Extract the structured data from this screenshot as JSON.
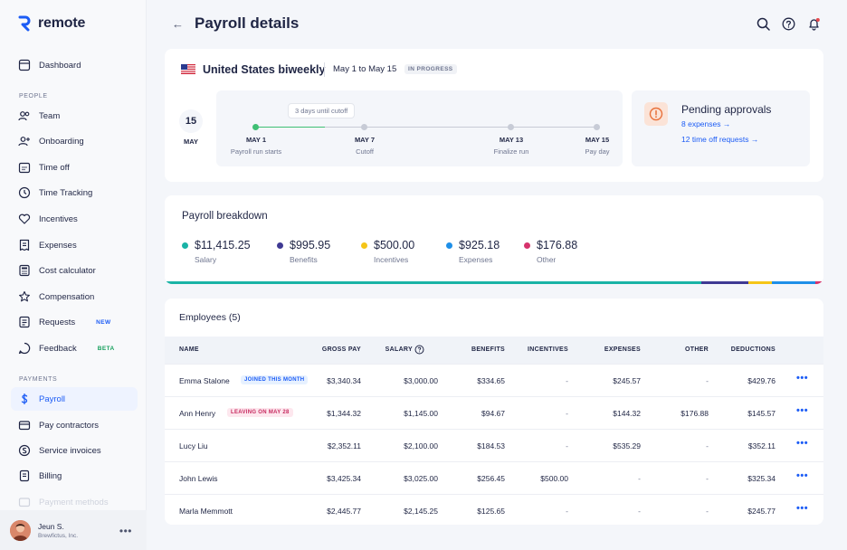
{
  "app": {
    "name": "remote"
  },
  "colors": {
    "brand": "#1c5cf5",
    "green": "#3fbf74"
  },
  "sidebar": {
    "items": [
      {
        "label": "Dashboard",
        "icon": "dashboard-icon"
      },
      {
        "label": "Team",
        "icon": "team-icon"
      },
      {
        "label": "Onboarding",
        "icon": "onboarding-icon"
      },
      {
        "label": "Time off",
        "icon": "calendar-icon"
      },
      {
        "label": "Time Tracking",
        "icon": "clock-icon"
      },
      {
        "label": "Incentives",
        "icon": "heart-icon"
      },
      {
        "label": "Expenses",
        "icon": "receipt-icon"
      },
      {
        "label": "Cost calculator",
        "icon": "calculator-icon"
      },
      {
        "label": "Compensation",
        "icon": "star-icon"
      },
      {
        "label": "Requests",
        "icon": "requests-icon",
        "badge": "NEW"
      },
      {
        "label": "Feedback",
        "icon": "feedback-icon",
        "badge": "BETA"
      },
      {
        "label": "Payroll",
        "icon": "dollar-icon"
      },
      {
        "label": "Pay contractors",
        "icon": "card-icon"
      },
      {
        "label": "Service invoices",
        "icon": "invoice-icon"
      },
      {
        "label": "Billing",
        "icon": "billing-icon"
      },
      {
        "label": "Payment methods",
        "icon": "payment-icon"
      }
    ],
    "sections": {
      "people": "PEOPLE",
      "payments": "PAYMENTS"
    },
    "user": {
      "name": "Jeun S.",
      "org": "Brewfictus, Inc."
    }
  },
  "header": {
    "title": "Payroll details"
  },
  "payroll_run": {
    "country": "United States biweekly",
    "period": "May 1 to May 15",
    "status": "IN PROGRESS",
    "calendar_day": "15",
    "calendar_month": "MAY",
    "tooltip": "3 days until cutoff",
    "steps": [
      {
        "date": "MAY 1",
        "desc": "Payroll run starts"
      },
      {
        "date": "MAY 7",
        "desc": "Cutoff"
      },
      {
        "date": "MAY 13",
        "desc": "Finalize run"
      },
      {
        "date": "MAY 15",
        "desc": "Pay day"
      }
    ]
  },
  "approvals": {
    "title": "Pending approvals",
    "expenses": "8 expenses →",
    "time_off": "12 time off requests →"
  },
  "breakdown": {
    "title": "Payroll breakdown",
    "items": [
      {
        "value": "$11,415.25",
        "label": "Salary",
        "color": "#19b3a6"
      },
      {
        "value": "$995.95",
        "label": "Benefits",
        "color": "#3f3a93"
      },
      {
        "value": "$500.00",
        "label": "Incentives",
        "color": "#f5c518"
      },
      {
        "value": "$925.18",
        "label": "Expenses",
        "color": "#1e8fe8"
      },
      {
        "value": "$176.88",
        "label": "Other",
        "color": "#d6336c"
      }
    ]
  },
  "employees": {
    "title": "Employees (5)",
    "columns": [
      "NAME",
      "GROSS PAY",
      "SALARY",
      "BENEFITS",
      "INCENTIVES",
      "EXPENSES",
      "OTHER",
      "DEDUCTIONS"
    ],
    "rows": [
      {
        "name": "Emma Stalone",
        "tag": "JOINED THIS MONTH",
        "tag_type": "join",
        "gross": "$3,340.34",
        "salary": "$3,000.00",
        "benefits": "$334.65",
        "incentives": "-",
        "expenses": "$245.57",
        "other": "-",
        "deductions": "$429.76"
      },
      {
        "name": "Ann Henry",
        "tag": "LEAVING ON MAY 28",
        "tag_type": "leave",
        "gross": "$1,344.32",
        "salary": "$1,145.00",
        "benefits": "$94.67",
        "incentives": "-",
        "expenses": "$144.32",
        "other": "$176.88",
        "deductions": "$145.57"
      },
      {
        "name": "Lucy Liu",
        "tag": "",
        "tag_type": "",
        "gross": "$2,352.11",
        "salary": "$2,100.00",
        "benefits": "$184.53",
        "incentives": "-",
        "expenses": "$535.29",
        "other": "-",
        "deductions": "$352.11"
      },
      {
        "name": "John Lewis",
        "tag": "",
        "tag_type": "",
        "gross": "$3,425.34",
        "salary": "$3,025.00",
        "benefits": "$256.45",
        "incentives": "$500.00",
        "expenses": "-",
        "other": "-",
        "deductions": "$325.34"
      },
      {
        "name": "Marla Memmott",
        "tag": "",
        "tag_type": "",
        "gross": "$2,445.77",
        "salary": "$2,145.25",
        "benefits": "$125.65",
        "incentives": "-",
        "expenses": "-",
        "other": "-",
        "deductions": "$245.77"
      }
    ]
  }
}
